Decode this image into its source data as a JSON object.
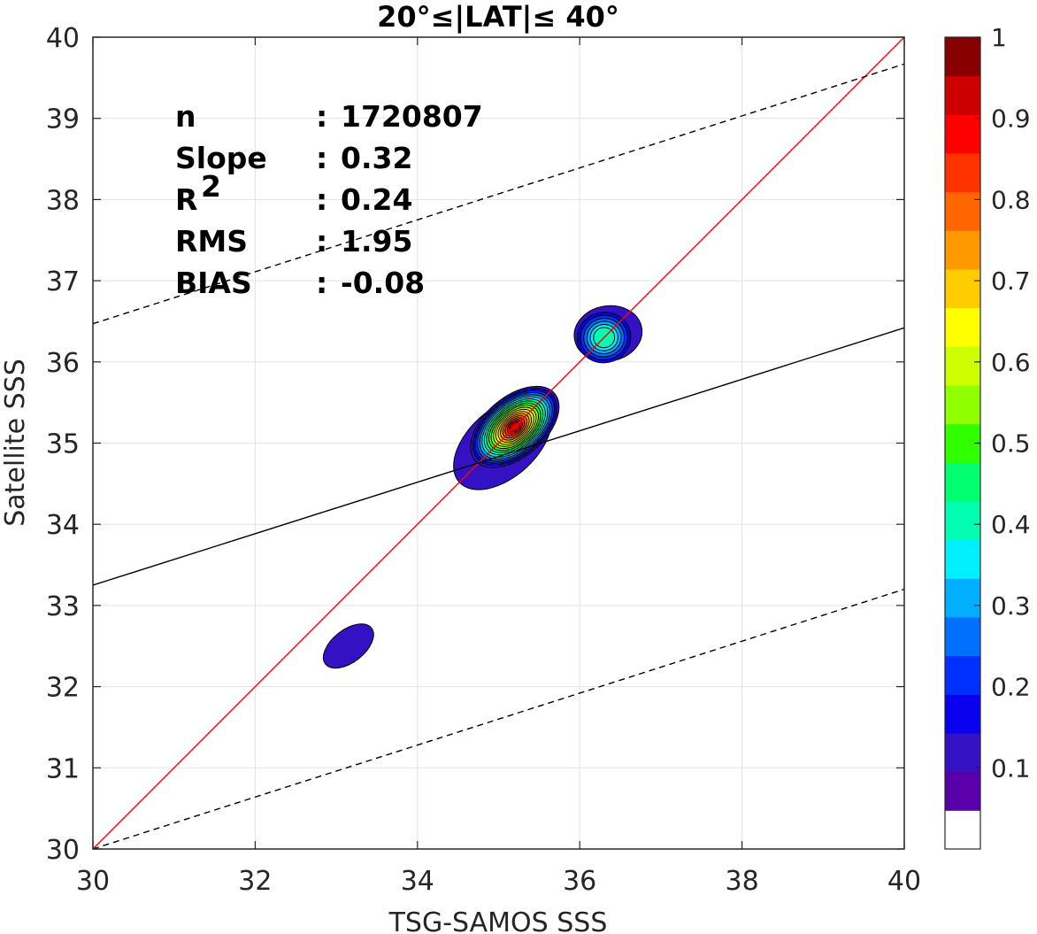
{
  "chart_data": {
    "type": "heatmap",
    "subtype": "filled-contour density scatter",
    "title": "20°≤|LAT|≤ 40°",
    "xlabel": "TSG-SAMOS SSS",
    "ylabel": "Satellite SSS",
    "xlim": [
      30,
      40
    ],
    "ylim": [
      30,
      40
    ],
    "xticks": [
      "30",
      "32",
      "34",
      "36",
      "38",
      "40"
    ],
    "yticks": [
      "30",
      "31",
      "32",
      "33",
      "34",
      "35",
      "36",
      "37",
      "38",
      "39",
      "40"
    ],
    "grid": true,
    "stats": [
      {
        "label": "n",
        "sep": ":",
        "value": "1720807"
      },
      {
        "label": "Slope",
        "sep": ":",
        "value": "0.32"
      },
      {
        "label": "R",
        "sup": "2",
        "sep": ":",
        "value": "0.24"
      },
      {
        "label": "RMS",
        "sep": ":",
        "value": "1.95"
      },
      {
        "label": "BIAS",
        "sep": ":",
        "value": "-0.08"
      }
    ],
    "lines": [
      {
        "type": "one-to-one",
        "color": "#ff0000",
        "points": [
          [
            30,
            30
          ],
          [
            40,
            40
          ]
        ]
      },
      {
        "type": "regression",
        "color": "#000000",
        "points": [
          [
            30,
            33.25
          ],
          [
            40,
            36.42
          ]
        ]
      },
      {
        "type": "upper-bound",
        "color": "#000000",
        "dashed": true,
        "points": [
          [
            30,
            36.47
          ],
          [
            40,
            39.67
          ]
        ]
      },
      {
        "type": "lower-bound",
        "color": "#000000",
        "dashed": true,
        "points": [
          [
            30,
            30.0
          ],
          [
            40,
            33.2
          ]
        ]
      }
    ],
    "density_peaks": [
      {
        "x": 35.2,
        "y": 35.2,
        "value": 0.95
      },
      {
        "x": 36.3,
        "y": 36.3,
        "value": 0.35
      },
      {
        "x": 33.1,
        "y": 32.5,
        "value": 0.1
      }
    ],
    "colorbar": {
      "range": [
        0,
        1
      ],
      "tick_labels": [
        "0.1",
        "0.2",
        "0.3",
        "0.4",
        "0.5",
        "0.6",
        "0.7",
        "0.8",
        "0.9",
        "1"
      ],
      "levels": 20,
      "colors": [
        "#ffffff",
        "#5a00aa",
        "#3411c3",
        "#0a00f0",
        "#0030ff",
        "#0070ff",
        "#00b0ff",
        "#00f0ff",
        "#00ffb0",
        "#00ff70",
        "#30ff00",
        "#90ff00",
        "#ccff00",
        "#ffff00",
        "#ffcc00",
        "#ff9900",
        "#ff6600",
        "#ff3300",
        "#ff0000",
        "#cc0000",
        "#880000"
      ]
    }
  }
}
